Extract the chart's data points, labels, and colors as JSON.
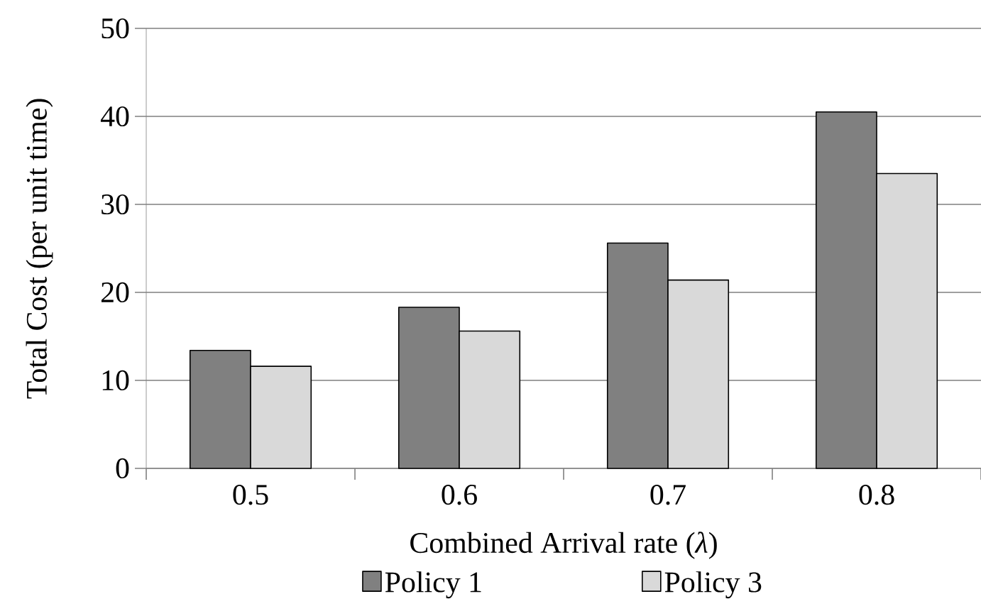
{
  "chart_data": {
    "type": "bar",
    "xlabel": "Combined Arrival rate (*λ*)",
    "ylabel": "Total Cost (per unit time)",
    "categories": [
      "0.5",
      "0.6",
      "0.7",
      "0.8"
    ],
    "series": [
      {
        "name": "Policy 1",
        "color": "#808080",
        "values": [
          13.4,
          18.3,
          25.6,
          40.5
        ]
      },
      {
        "name": "Policy 3",
        "color": "#d9d9d9",
        "values": [
          11.6,
          15.6,
          21.4,
          33.5
        ]
      }
    ],
    "ylim": [
      0,
      50
    ],
    "yticks": [
      0,
      10,
      20,
      30,
      40,
      50
    ],
    "grid": "y",
    "legend": "bottom"
  }
}
